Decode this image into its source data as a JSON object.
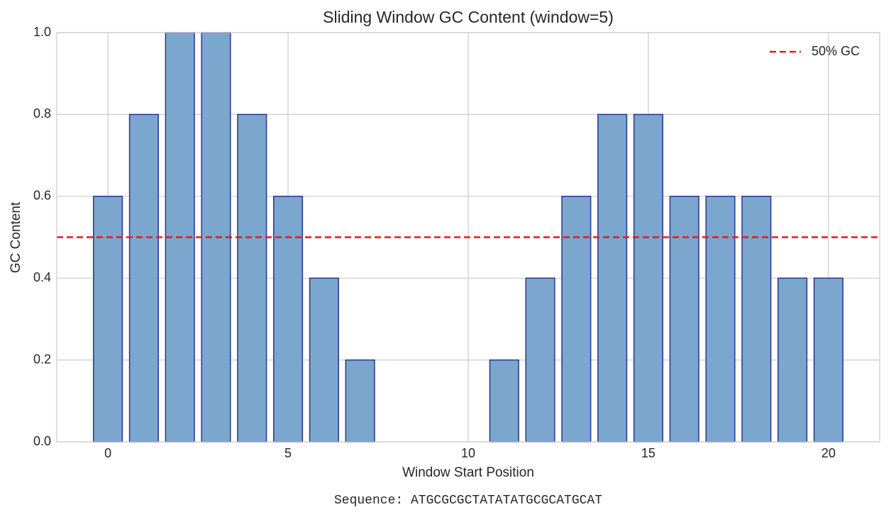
{
  "chart_data": {
    "type": "bar",
    "title": "Sliding Window GC Content (window=5)",
    "x": [
      0,
      1,
      2,
      3,
      4,
      5,
      6,
      7,
      8,
      9,
      10,
      11,
      12,
      13,
      14,
      15,
      16,
      17,
      18,
      19,
      20
    ],
    "values": [
      0.6,
      0.8,
      1.0,
      1.0,
      0.8,
      0.6,
      0.4,
      0.2,
      0,
      0,
      0,
      0.2,
      0.4,
      0.6,
      0.8,
      0.8,
      0.6,
      0.6,
      0.6,
      0.4,
      0.4
    ],
    "color": "#7ba6cd",
    "edge_color": "#2b3591",
    "xlabel": "Window Start Position",
    "ylabel": "GC Content",
    "xlim": [
      -1.42,
      21.42
    ],
    "xticks": [
      0,
      5,
      10,
      15,
      20
    ],
    "ylim": [
      0,
      1
    ],
    "yticks": [
      {
        "value": 0,
        "label": "0.0"
      },
      {
        "value": 0.2,
        "label": "0.2"
      },
      {
        "value": 0.4,
        "label": "0.4"
      },
      {
        "value": 0.6,
        "label": "0.6"
      },
      {
        "value": 0.8,
        "label": "0.8"
      },
      {
        "value": 1,
        "label": "1.0"
      }
    ],
    "grid": true,
    "hline": {
      "value": 0.5,
      "label": "50% GC",
      "color": "#e41a1c"
    },
    "legend": "upper right",
    "annotation": "Sequence: ATGCGCGCTATATATGCGCATGCAT"
  }
}
